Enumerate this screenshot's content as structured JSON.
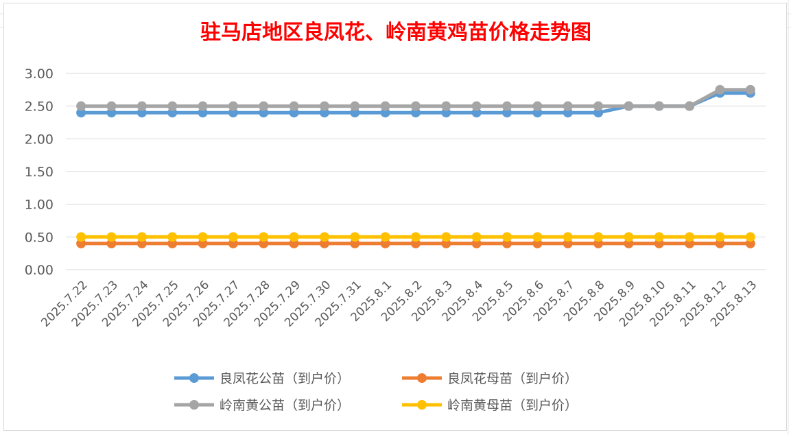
{
  "chart_data": {
    "type": "line",
    "title": "驻马店地区良凤花、岭南黄鸡苗价格走势图",
    "xlabel": "",
    "ylabel": "",
    "ylim": [
      0,
      3
    ],
    "yticks": [
      "0.00",
      "0.50",
      "1.00",
      "1.50",
      "2.00",
      "2.50",
      "3.00"
    ],
    "grid": "horizontal",
    "legend_position": "bottom",
    "x": [
      "2025.7.22",
      "2025.7.23",
      "2025.7.24",
      "2025.7.25",
      "2025.7.26",
      "2025.7.27",
      "2025.7.28",
      "2025.7.29",
      "2025.7.30",
      "2025.7.31",
      "2025.8.1",
      "2025.8.2",
      "2025.8.3",
      "2025.8.4",
      "2025.8.5",
      "2025.8.6",
      "2025.8.7",
      "2025.8.8",
      "2025.8.9",
      "2025.8.10",
      "2025.8.11",
      "2025.8.12",
      "2025.8.13"
    ],
    "series": [
      {
        "name": "良凤花公苗（到户价）",
        "color": "#5b9bd5",
        "values": [
          2.4,
          2.4,
          2.4,
          2.4,
          2.4,
          2.4,
          2.4,
          2.4,
          2.4,
          2.4,
          2.4,
          2.4,
          2.4,
          2.4,
          2.4,
          2.4,
          2.4,
          2.4,
          2.5,
          2.5,
          2.5,
          2.7,
          2.7
        ]
      },
      {
        "name": "良凤花母苗（到户价）",
        "color": "#ed7d31",
        "values": [
          0.4,
          0.4,
          0.4,
          0.4,
          0.4,
          0.4,
          0.4,
          0.4,
          0.4,
          0.4,
          0.4,
          0.4,
          0.4,
          0.4,
          0.4,
          0.4,
          0.4,
          0.4,
          0.4,
          0.4,
          0.4,
          0.4,
          0.4
        ]
      },
      {
        "name": "岭南黄公苗（到户价）",
        "color": "#a5a5a5",
        "values": [
          2.5,
          2.5,
          2.5,
          2.5,
          2.5,
          2.5,
          2.5,
          2.5,
          2.5,
          2.5,
          2.5,
          2.5,
          2.5,
          2.5,
          2.5,
          2.5,
          2.5,
          2.5,
          2.5,
          2.5,
          2.5,
          2.75,
          2.75
        ]
      },
      {
        "name": "岭南黄母苗（到户价）",
        "color": "#ffc000",
        "values": [
          0.5,
          0.5,
          0.5,
          0.5,
          0.5,
          0.5,
          0.5,
          0.5,
          0.5,
          0.5,
          0.5,
          0.5,
          0.5,
          0.5,
          0.5,
          0.5,
          0.5,
          0.5,
          0.5,
          0.5,
          0.5,
          0.5,
          0.5
        ]
      }
    ]
  }
}
